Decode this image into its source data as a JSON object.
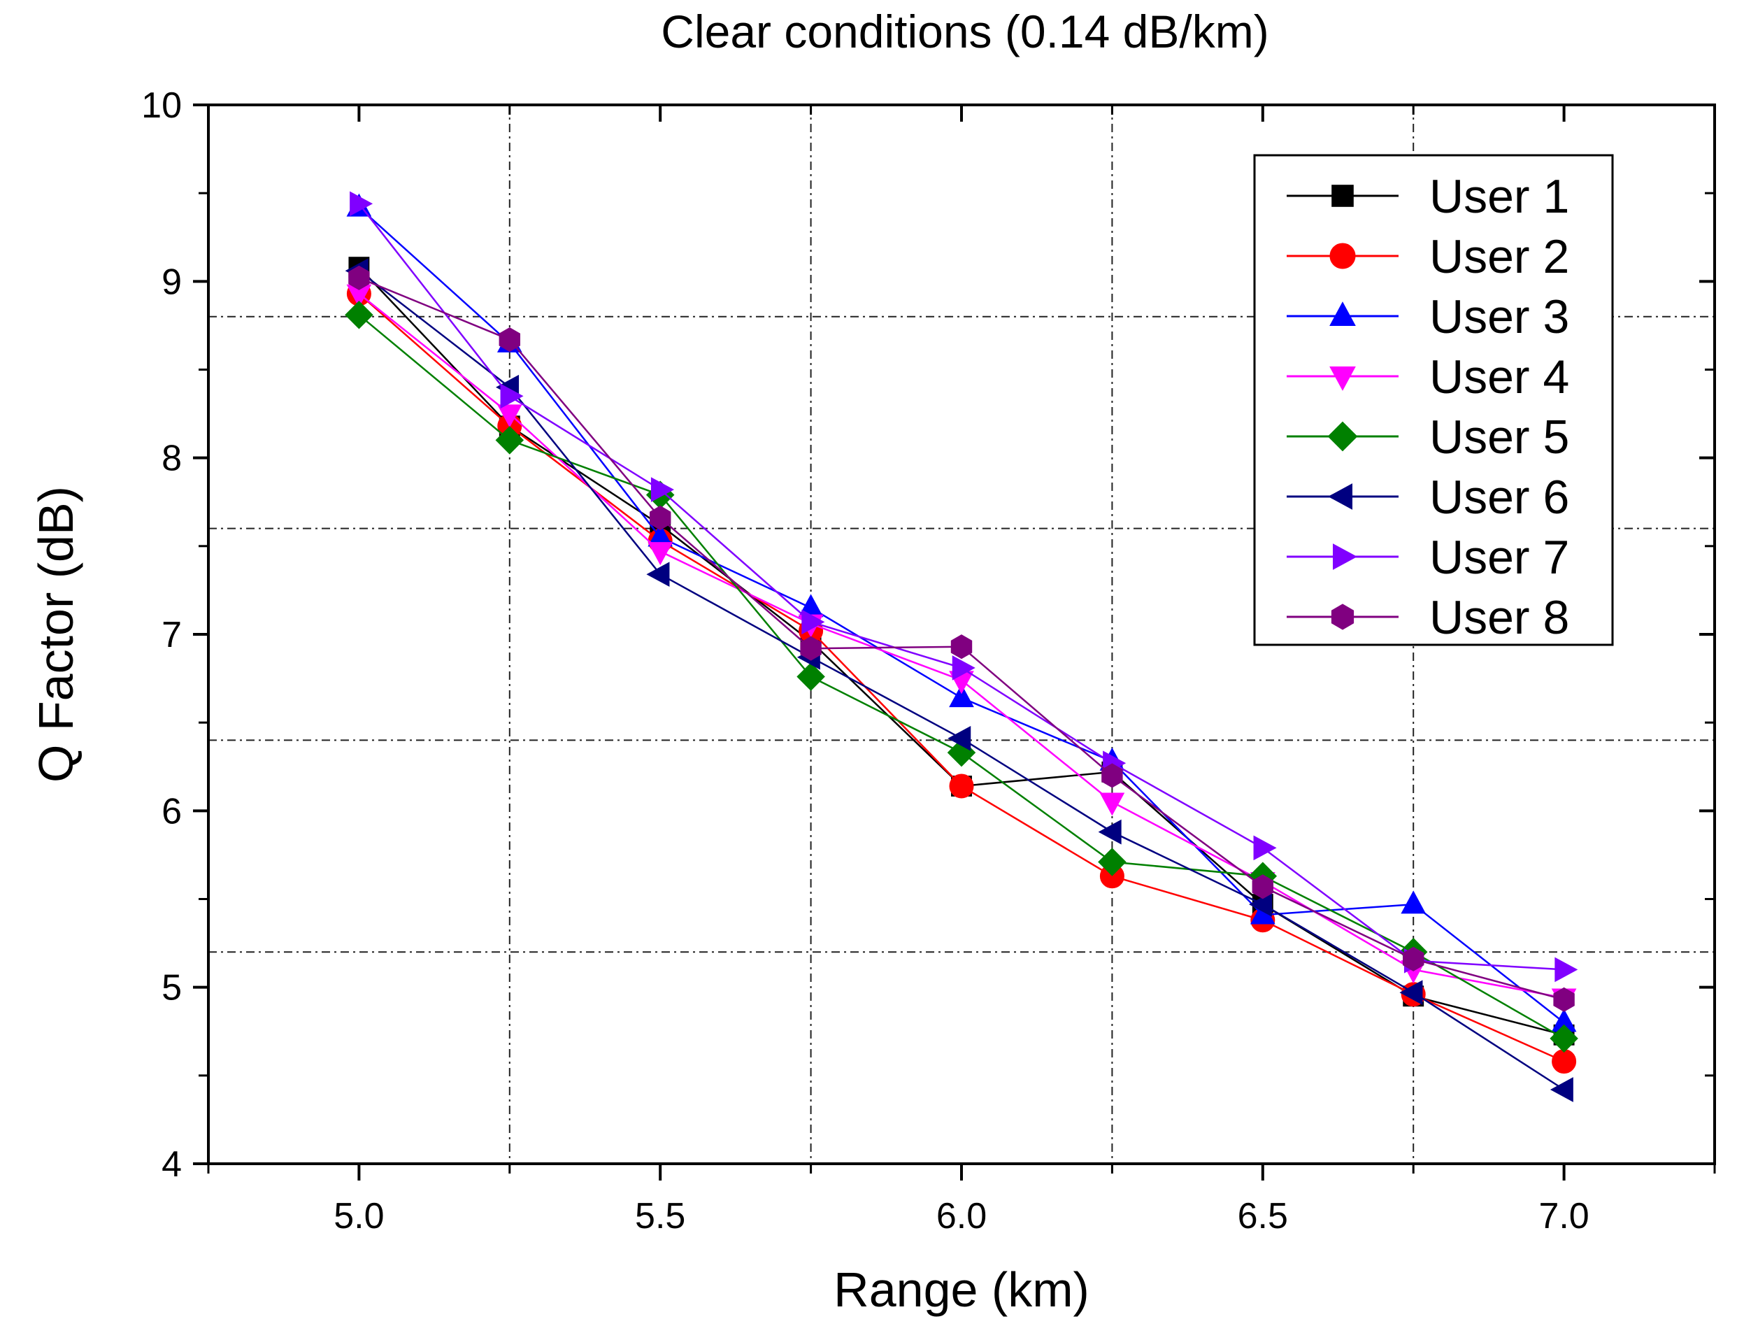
{
  "chart_data": {
    "type": "line",
    "title": "Clear conditions (0.14 dB/km)",
    "xlabel": "Range (km)",
    "ylabel": "Q Factor (dB)",
    "xlim": [
      4.75,
      7.25
    ],
    "ylim": [
      4,
      10
    ],
    "xticks": [
      5.0,
      5.5,
      6.0,
      6.5,
      7.0
    ],
    "xtick_labels": [
      "5.0",
      "5.5",
      "6.0",
      "6.5",
      "7.0"
    ],
    "yticks": [
      4,
      5,
      6,
      7,
      8,
      9,
      10
    ],
    "ytick_labels": [
      "4",
      "5",
      "6",
      "7",
      "8",
      "9",
      "10"
    ],
    "grid": "dash-dot at x = 5.25, 5.75, 6.25, 6.75 and y = 5.2, 6.4, 7.6, 8.8",
    "legend_position": "top-right",
    "x": [
      5.0,
      5.25,
      5.5,
      5.75,
      6.0,
      6.25,
      6.5,
      6.75,
      7.0
    ],
    "series": [
      {
        "name": "User 1",
        "marker": "square",
        "color": "#000000",
        "values": [
          9.08,
          8.18,
          7.62,
          6.96,
          6.14,
          6.22,
          5.47,
          4.95,
          4.73
        ]
      },
      {
        "name": "User 2",
        "marker": "circle",
        "color": "#ff0000",
        "values": [
          8.93,
          8.18,
          7.53,
          7.02,
          6.14,
          5.63,
          5.38,
          4.96,
          4.58
        ]
      },
      {
        "name": "User 3",
        "marker": "triangle-up",
        "color": "#0000ff",
        "values": [
          9.42,
          8.65,
          7.55,
          7.15,
          6.64,
          6.28,
          5.41,
          5.47,
          4.8
        ]
      },
      {
        "name": "User 4",
        "marker": "triangle-down",
        "color": "#ff00ff",
        "values": [
          8.93,
          8.25,
          7.47,
          7.06,
          6.74,
          6.05,
          5.6,
          5.1,
          4.94
        ]
      },
      {
        "name": "User 5",
        "marker": "diamond",
        "color": "#008000",
        "values": [
          8.81,
          8.1,
          7.79,
          6.76,
          6.33,
          5.71,
          5.63,
          5.2,
          4.71
        ]
      },
      {
        "name": "User 6",
        "marker": "triangle-left",
        "color": "#000080",
        "values": [
          9.06,
          8.4,
          7.34,
          6.87,
          6.41,
          5.88,
          5.47,
          4.97,
          4.42
        ]
      },
      {
        "name": "User 7",
        "marker": "triangle-right",
        "color": "#8000ff",
        "values": [
          9.44,
          8.35,
          7.82,
          7.07,
          6.81,
          6.27,
          5.79,
          5.15,
          5.1
        ]
      },
      {
        "name": "User 8",
        "marker": "hexagon",
        "color": "#800080",
        "values": [
          9.02,
          8.67,
          7.66,
          6.92,
          6.93,
          6.2,
          5.57,
          5.16,
          4.93
        ]
      }
    ]
  }
}
